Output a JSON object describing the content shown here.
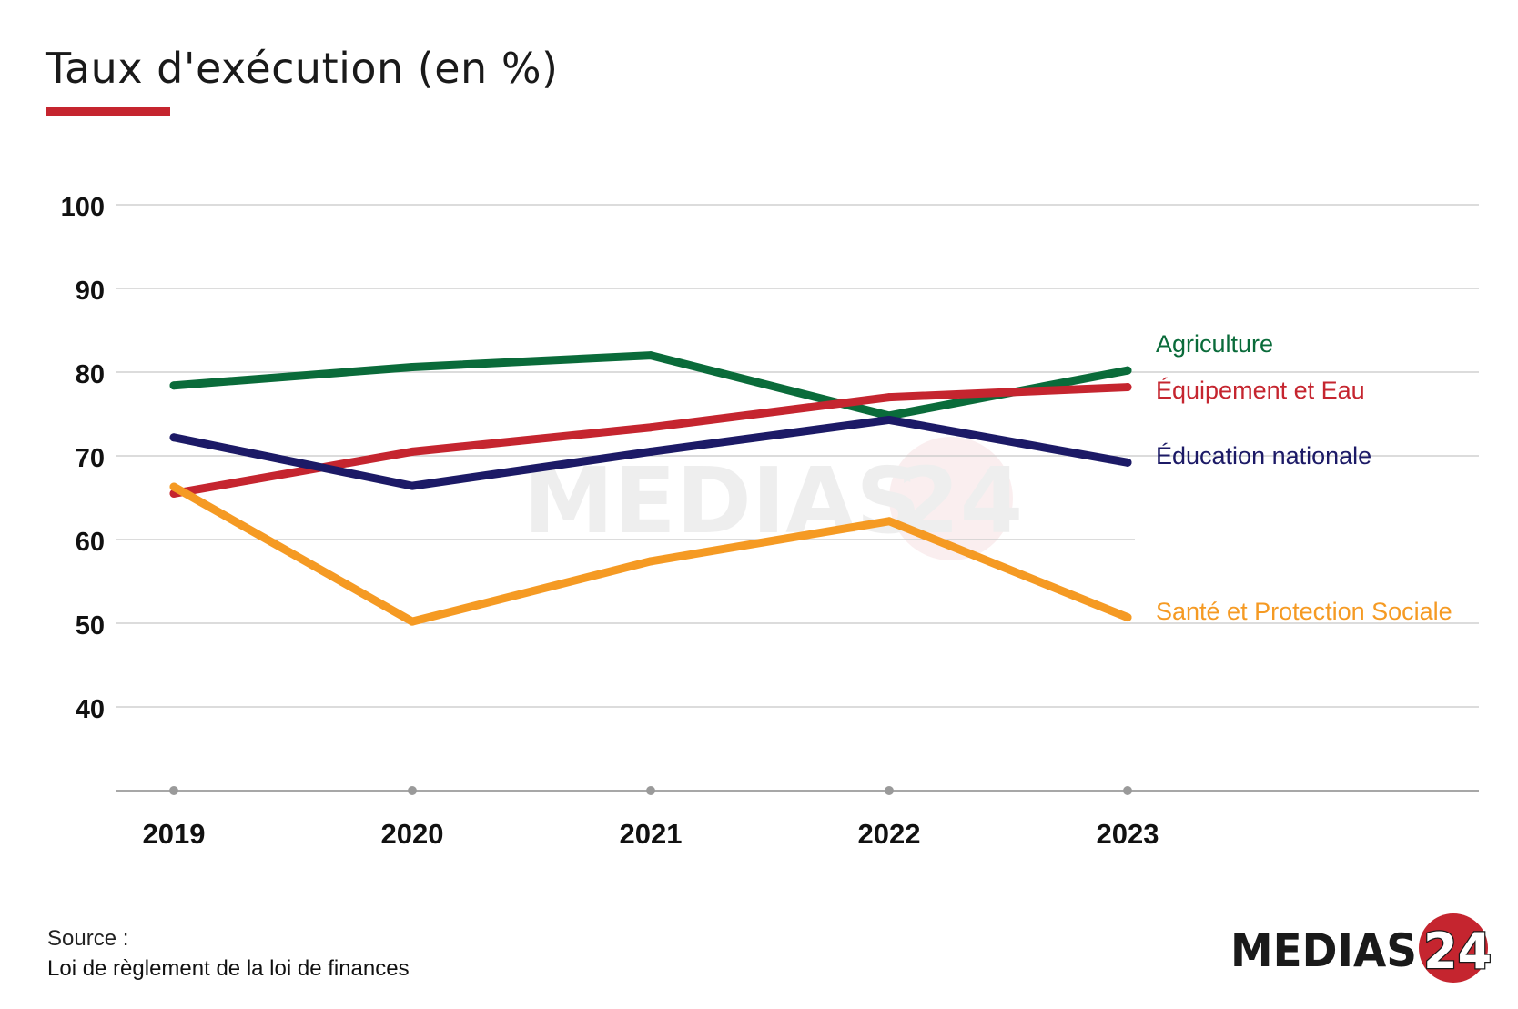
{
  "title": "Taux d'exécution (en %)",
  "colors": {
    "accent": "#c5252f",
    "grid": "#c8c8c8",
    "axis": "#8a8a8a",
    "text": "#111111"
  },
  "chart_data": {
    "type": "line",
    "title": "Taux d'exécution (en %)",
    "xlabel": "",
    "ylabel": "",
    "x": [
      "2019",
      "2020",
      "2021",
      "2022",
      "2023"
    ],
    "ylim": [
      30,
      100
    ],
    "yticks": [
      "40",
      "50",
      "60",
      "70",
      "80",
      "90",
      "100"
    ],
    "grid": true,
    "legend": "right-inline",
    "series": [
      {
        "name": "Agriculture",
        "color": "#0a6b3a",
        "values": [
          78.4,
          80.6,
          82.0,
          74.8,
          80.2
        ]
      },
      {
        "name": "Équipement et Eau",
        "color": "#c5252f",
        "values": [
          65.5,
          70.5,
          73.4,
          77.0,
          78.2
        ]
      },
      {
        "name": "Éducation nationale",
        "color": "#1c1a66",
        "values": [
          72.2,
          66.4,
          70.5,
          74.3,
          69.2
        ]
      },
      {
        "name": "Santé et Protection Sociale",
        "color": "#f59a23",
        "values": [
          66.3,
          50.2,
          57.4,
          62.2,
          50.7
        ]
      }
    ]
  },
  "source": {
    "label": "Source :",
    "text": "Loi de règlement de la loi de finances"
  },
  "logo": {
    "text": "MEDIAS",
    "number": "24",
    "name": "medias24-logo"
  }
}
